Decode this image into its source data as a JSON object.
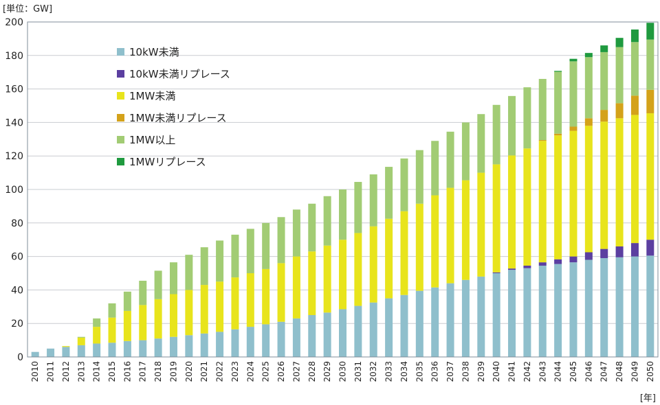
{
  "chart_data": {
    "type": "bar",
    "stacked": true,
    "unit_label": "[単位：GW]",
    "x_unit_label": "[年]",
    "xlabel": "",
    "ylabel": "",
    "ylim": [
      0,
      200
    ],
    "yticks": [
      0,
      20,
      40,
      60,
      80,
      100,
      120,
      140,
      160,
      180,
      200
    ],
    "grid": true,
    "legend_position": "upper-left",
    "categories": [
      "2010",
      "2011",
      "2012",
      "2013",
      "2014",
      "2015",
      "2016",
      "2017",
      "2018",
      "2019",
      "2020",
      "2021",
      "2022",
      "2023",
      "2024",
      "2025",
      "2026",
      "2027",
      "2028",
      "2029",
      "2030",
      "2031",
      "2032",
      "2033",
      "2034",
      "2035",
      "2036",
      "2037",
      "2038",
      "2039",
      "2040",
      "2041",
      "2042",
      "2043",
      "2044",
      "2045",
      "2046",
      "2047",
      "2048",
      "2049",
      "2050"
    ],
    "series": [
      {
        "name": "10kW未満",
        "color": "#8fbfcc",
        "values": [
          3,
          5,
          6,
          7,
          8,
          8.5,
          9.5,
          10,
          11,
          12,
          13,
          14,
          15,
          16.5,
          18,
          19.5,
          21,
          23,
          25,
          26.5,
          28.5,
          30.5,
          32.5,
          35,
          37,
          39.5,
          41.5,
          44,
          46,
          48,
          50,
          52,
          53,
          54.5,
          55.5,
          56.5,
          58,
          59,
          59.5,
          60,
          60.5
        ]
      },
      {
        "name": "10kW未満リプレース",
        "color": "#5b3fa0",
        "values": [
          0,
          0,
          0,
          0,
          0,
          0,
          0,
          0,
          0,
          0,
          0,
          0,
          0,
          0,
          0,
          0,
          0,
          0,
          0,
          0,
          0,
          0,
          0,
          0,
          0,
          0,
          0,
          0,
          0,
          0,
          0.5,
          0.8,
          1.5,
          2,
          2.8,
          3.5,
          4.5,
          5.5,
          6.5,
          8,
          9.5
        ]
      },
      {
        "name": "1MW未満",
        "color": "#e8e41c",
        "values": [
          0,
          0,
          0.5,
          4.5,
          10,
          15,
          18,
          21,
          23.5,
          25.5,
          27,
          29,
          30,
          31,
          32,
          33,
          35,
          37,
          38,
          40,
          41.5,
          43.5,
          45.5,
          47.5,
          50,
          52,
          55,
          57,
          59.5,
          62,
          64.5,
          67.5,
          70,
          72.5,
          74,
          75,
          75.5,
          76,
          76.5,
          76.5,
          75.5
        ]
      },
      {
        "name": "1MW未満リプレース",
        "color": "#d4a21a",
        "values": [
          0,
          0,
          0,
          0,
          0,
          0,
          0,
          0,
          0,
          0,
          0,
          0,
          0,
          0,
          0,
          0,
          0,
          0,
          0,
          0,
          0,
          0,
          0,
          0,
          0,
          0,
          0,
          0,
          0,
          0,
          0,
          0,
          0,
          0.5,
          1,
          2.5,
          4.5,
          7,
          9,
          11.5,
          14
        ]
      },
      {
        "name": "1MW以上",
        "color": "#a2cc74",
        "values": [
          0,
          0,
          0,
          0.5,
          5,
          8.5,
          11.5,
          14.5,
          17,
          19,
          21,
          22.5,
          24.5,
          25.5,
          26.5,
          27.5,
          27.5,
          28,
          28.5,
          29.5,
          30,
          30.5,
          31,
          31,
          31.5,
          32,
          32.5,
          33.5,
          34.5,
          35,
          35.5,
          35.5,
          36.5,
          36.5,
          37,
          39,
          36.5,
          34.5,
          33.5,
          32,
          30
        ]
      },
      {
        "name": "1MWリプレース",
        "color": "#1f9a3f",
        "values": [
          0,
          0,
          0,
          0,
          0,
          0,
          0,
          0,
          0,
          0,
          0,
          0,
          0,
          0,
          0,
          0,
          0,
          0,
          0,
          0,
          0,
          0,
          0,
          0,
          0,
          0,
          0,
          0,
          0,
          0,
          0,
          0,
          0,
          0,
          0.5,
          1.5,
          2.5,
          4,
          5.5,
          7.5,
          10
        ]
      }
    ]
  }
}
